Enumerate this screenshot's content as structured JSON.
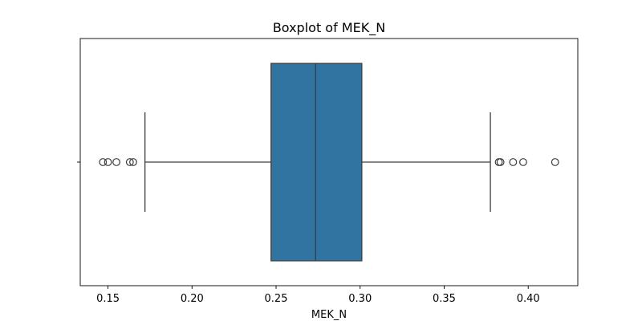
{
  "chart_data": {
    "type": "boxplot",
    "title": "Boxplot of MEK_N",
    "xlabel": "MEK_N",
    "ylabel": "",
    "orientation": "horizontal",
    "xlim": [
      0.1335,
      0.4295
    ],
    "xticks": [
      0.15,
      0.2,
      0.25,
      0.3,
      0.35,
      0.4
    ],
    "xtick_labels": [
      "0.15",
      "0.20",
      "0.25",
      "0.30",
      "0.35",
      "0.40"
    ],
    "grid": false,
    "box": {
      "whisker_low": 0.172,
      "q1": 0.247,
      "median": 0.2735,
      "q3": 0.301,
      "whisker_high": 0.3775
    },
    "outliers": [
      0.147,
      0.15,
      0.155,
      0.163,
      0.165,
      0.3825,
      0.3835,
      0.391,
      0.397,
      0.416
    ],
    "colors": {
      "box_fill": "#3274a1",
      "line": "#3d3d3d",
      "outlier_edge": "#3d3d3d"
    }
  }
}
